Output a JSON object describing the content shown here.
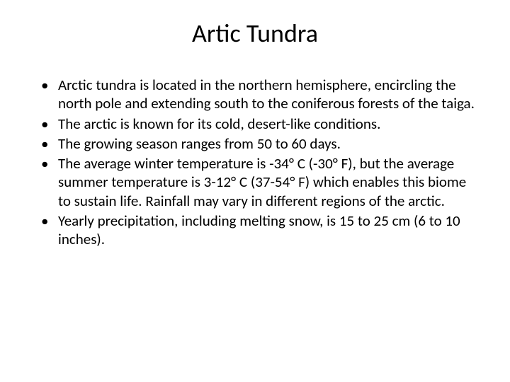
{
  "slide": {
    "title": "Artic Tundra",
    "title_fontsize": 36,
    "body_fontsize": 21,
    "background_color": "#ffffff",
    "text_color": "#000000",
    "bullets": [
      "Arctic tundra is located in the northern hemisphere, encircling the north pole and extending south to the coniferous forests of the taiga.",
      " The arctic is known for its cold, desert-like conditions.",
      " The growing season ranges from 50 to 60 days.",
      "The average winter temperature is -34° C (-30° F), but the average summer temperature is 3-12° C (37-54° F) which enables this biome to sustain life. Rainfall may vary in different regions of the arctic.",
      "Yearly precipitation, including melting snow, is 15 to 25 cm (6 to 10 inches)."
    ]
  }
}
